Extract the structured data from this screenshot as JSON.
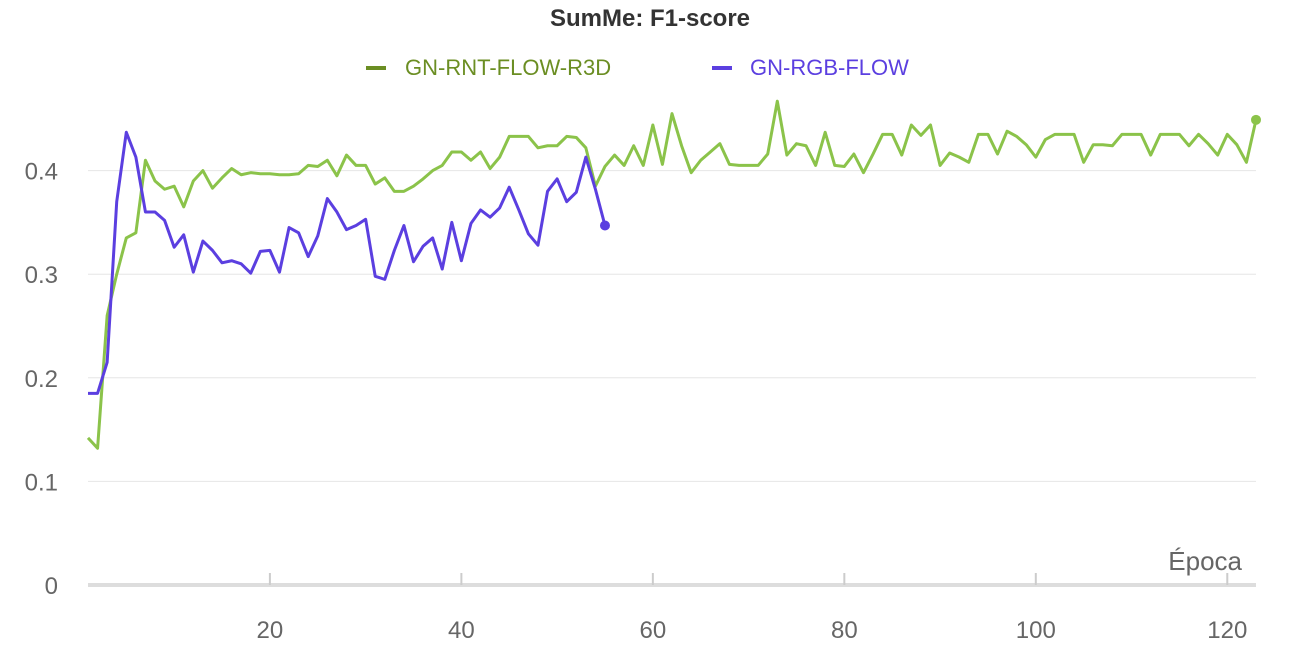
{
  "chart_data": {
    "type": "line",
    "title": "SumMe: F1-score",
    "xlabel": "Época",
    "ylabel": "",
    "xlim": [
      1,
      123
    ],
    "ylim": [
      0,
      0.5
    ],
    "x_ticks": [
      20,
      40,
      60,
      80,
      100,
      120
    ],
    "y_ticks": [
      0,
      0.1,
      0.2,
      0.3,
      0.4
    ],
    "grid": true,
    "legend_position": "top-center",
    "series": [
      {
        "name": "GN-RNT-FLOW-R3D",
        "color": "#8bc34a",
        "legend_color": "#6b8e23",
        "x_start": 1,
        "values": [
          0.142,
          0.132,
          0.26,
          0.3,
          0.335,
          0.34,
          0.41,
          0.39,
          0.382,
          0.385,
          0.365,
          0.39,
          0.4,
          0.383,
          0.393,
          0.402,
          0.396,
          0.398,
          0.397,
          0.397,
          0.396,
          0.396,
          0.397,
          0.405,
          0.404,
          0.41,
          0.395,
          0.415,
          0.405,
          0.405,
          0.387,
          0.393,
          0.38,
          0.38,
          0.385,
          0.392,
          0.4,
          0.405,
          0.418,
          0.418,
          0.41,
          0.418,
          0.402,
          0.413,
          0.433,
          0.433,
          0.433,
          0.422,
          0.424,
          0.424,
          0.433,
          0.432,
          0.422,
          0.385,
          0.404,
          0.415,
          0.405,
          0.424,
          0.405,
          0.444,
          0.406,
          0.455,
          0.424,
          0.398,
          0.41,
          0.418,
          0.426,
          0.406,
          0.405,
          0.405,
          0.405,
          0.416,
          0.467,
          0.415,
          0.426,
          0.424,
          0.405,
          0.437,
          0.405,
          0.404,
          0.416,
          0.398,
          0.416,
          0.435,
          0.435,
          0.415,
          0.444,
          0.434,
          0.444,
          0.405,
          0.417,
          0.413,
          0.408,
          0.435,
          0.435,
          0.416,
          0.438,
          0.433,
          0.425,
          0.413,
          0.43,
          0.435,
          0.435,
          0.435,
          0.408,
          0.425,
          0.425,
          0.424,
          0.435,
          0.435,
          0.435,
          0.415,
          0.435,
          0.435,
          0.435,
          0.424,
          0.435,
          0.426,
          0.415,
          0.435,
          0.425,
          0.408,
          0.449
        ]
      },
      {
        "name": "GN-RGB-FLOW",
        "color": "#5b3fe0",
        "legend_color": "#5b3fe0",
        "x_start": 1,
        "values": [
          0.185,
          0.185,
          0.215,
          0.37,
          0.437,
          0.413,
          0.36,
          0.36,
          0.352,
          0.326,
          0.338,
          0.302,
          0.332,
          0.323,
          0.311,
          0.313,
          0.31,
          0.301,
          0.322,
          0.323,
          0.302,
          0.345,
          0.34,
          0.317,
          0.337,
          0.373,
          0.36,
          0.343,
          0.347,
          0.353,
          0.298,
          0.295,
          0.323,
          0.347,
          0.312,
          0.327,
          0.335,
          0.305,
          0.35,
          0.313,
          0.349,
          0.362,
          0.355,
          0.364,
          0.384,
          0.362,
          0.339,
          0.328,
          0.38,
          0.392,
          0.37,
          0.379,
          0.413,
          0.382,
          0.347
        ]
      }
    ]
  }
}
